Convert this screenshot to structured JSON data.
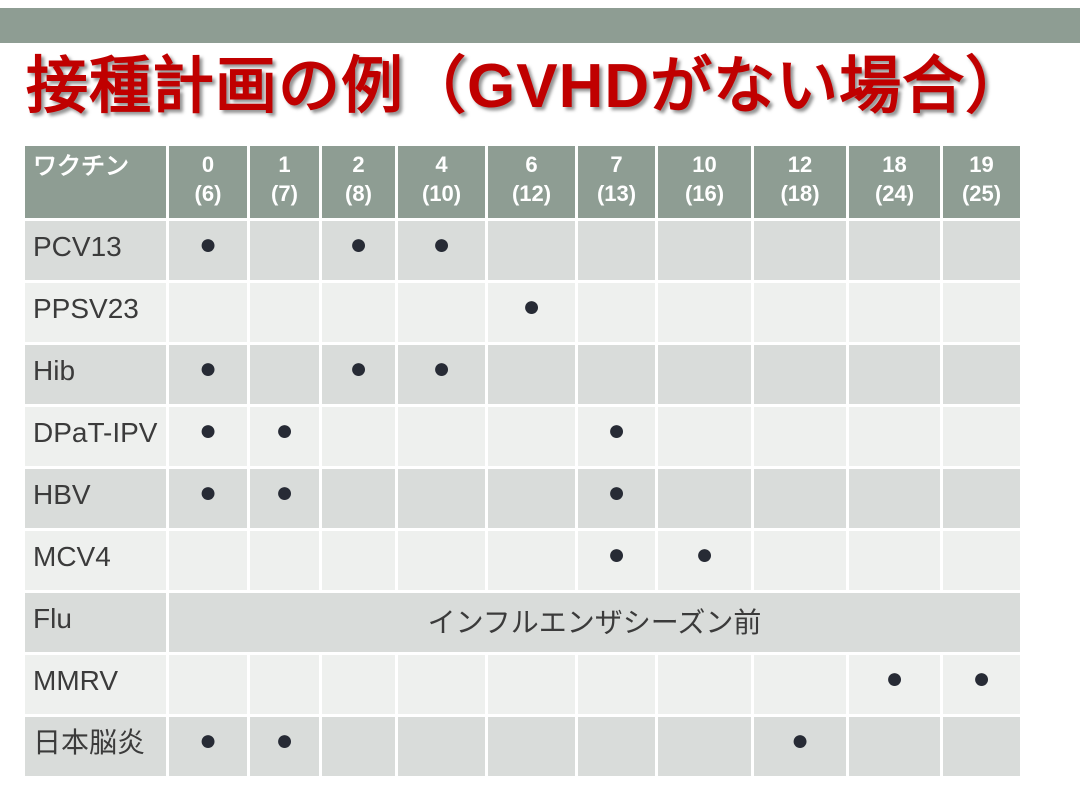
{
  "title": "接種計画の例（GVHDがない場合）",
  "colors": {
    "accent_band": "#8E9D93",
    "header_bg": "#8E9D93",
    "row_dark": "#D9DCDA",
    "row_light": "#EEF0EE",
    "dot": "#272B35",
    "title_red": "#C00000",
    "header_text": "#FFFFFF",
    "body_text": "#3B3B3B"
  },
  "table": {
    "dot_symbol": "●",
    "header": {
      "vaccine_label": "ワクチン",
      "columns": [
        {
          "month": "0",
          "age": "(6)"
        },
        {
          "month": "1",
          "age": "(7)"
        },
        {
          "month": "2",
          "age": "(8)"
        },
        {
          "month": "4",
          "age": "(10)"
        },
        {
          "month": "6",
          "age": "(12)"
        },
        {
          "month": "7",
          "age": "(13)"
        },
        {
          "month": "10",
          "age": "(16)"
        },
        {
          "month": "12",
          "age": "(18)"
        },
        {
          "month": "18",
          "age": "(24)"
        },
        {
          "month": "19",
          "age": "(25)"
        }
      ]
    },
    "rows": [
      {
        "label": "PCV13",
        "dots": [
          "0",
          "2",
          "4"
        ]
      },
      {
        "label": "PPSV23",
        "dots": [
          "6"
        ]
      },
      {
        "label": "Hib",
        "dots": [
          "0",
          "2",
          "4"
        ]
      },
      {
        "label": "DPaT-IPV",
        "dots": [
          "0",
          "1",
          "7"
        ]
      },
      {
        "label": "HBV",
        "dots": [
          "0",
          "1",
          "7"
        ]
      },
      {
        "label": "MCV4",
        "dots": [
          "7",
          "10"
        ]
      },
      {
        "label": "Flu",
        "merged_text": "インフルエンザシーズン前"
      },
      {
        "label": "MMRV",
        "dots": [
          "18",
          "19"
        ]
      },
      {
        "label": "日本脳炎",
        "dots": [
          "0",
          "1",
          "12"
        ]
      }
    ]
  }
}
